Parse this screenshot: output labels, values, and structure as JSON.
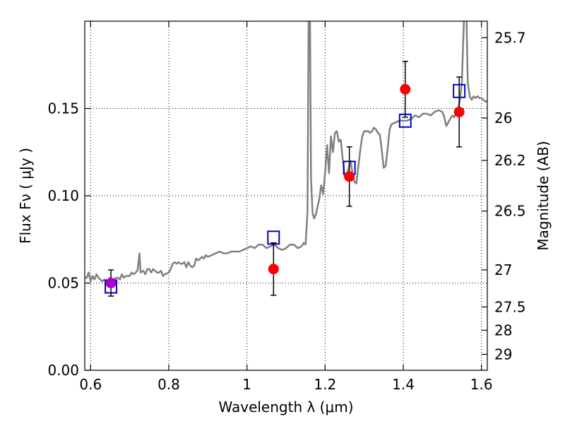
{
  "chart_data": {
    "type": "scatter",
    "title": "",
    "xlabel": "Wavelength  λ (μm)",
    "ylabel": "Flux  Fν  ( μJy )",
    "ylabel_right": "Magnitude (AB)",
    "xlim": [
      0.585,
      1.615
    ],
    "ylim": [
      0.0,
      0.2
    ],
    "grid": true,
    "x_ticks": [
      0.6,
      0.8,
      1.0,
      1.2,
      1.4,
      1.6
    ],
    "x_tick_labels": [
      "0.6",
      "0.8",
      "1",
      "1.2",
      "1.4",
      "1.6"
    ],
    "y_ticks": [
      0.0,
      0.05,
      0.1,
      0.15
    ],
    "y_tick_labels": [
      "0.00",
      "0.05",
      "0.10",
      "0.15"
    ],
    "right_ticks": [
      {
        "label": "25.7",
        "mag": 25.7
      },
      {
        "label": "26",
        "mag": 26.0
      },
      {
        "label": "26.2",
        "mag": 26.2
      },
      {
        "label": "26.5",
        "mag": 26.5
      },
      {
        "label": "27",
        "mag": 27.0
      },
      {
        "label": "27.5",
        "mag": 27.5
      },
      {
        "label": "28",
        "mag": 28.0
      },
      {
        "label": "29",
        "mag": 29.0
      }
    ],
    "series": [
      {
        "kind": "line",
        "color": "#808080",
        "points": [
          [
            0.585,
            0.053
          ],
          [
            0.59,
            0.053
          ],
          [
            0.595,
            0.056
          ],
          [
            0.6,
            0.051
          ],
          [
            0.605,
            0.054
          ],
          [
            0.61,
            0.052
          ],
          [
            0.615,
            0.055
          ],
          [
            0.62,
            0.053
          ],
          [
            0.625,
            0.052
          ],
          [
            0.63,
            0.051
          ],
          [
            0.635,
            0.052
          ],
          [
            0.64,
            0.051
          ],
          [
            0.645,
            0.052
          ],
          [
            0.65,
            0.053
          ],
          [
            0.655,
            0.051
          ],
          [
            0.66,
            0.052
          ],
          [
            0.665,
            0.053
          ],
          [
            0.67,
            0.053
          ],
          [
            0.675,
            0.052
          ],
          [
            0.68,
            0.055
          ],
          [
            0.685,
            0.053
          ],
          [
            0.69,
            0.054
          ],
          [
            0.7,
            0.054
          ],
          [
            0.705,
            0.056
          ],
          [
            0.71,
            0.055
          ],
          [
            0.715,
            0.056
          ],
          [
            0.72,
            0.057
          ],
          [
            0.725,
            0.067
          ],
          [
            0.728,
            0.056
          ],
          [
            0.735,
            0.057
          ],
          [
            0.74,
            0.055
          ],
          [
            0.745,
            0.058
          ],
          [
            0.75,
            0.058
          ],
          [
            0.755,
            0.056
          ],
          [
            0.76,
            0.058
          ],
          [
            0.765,
            0.057
          ],
          [
            0.77,
            0.056
          ],
          [
            0.775,
            0.056
          ],
          [
            0.78,
            0.057
          ],
          [
            0.785,
            0.054
          ],
          [
            0.79,
            0.055
          ],
          [
            0.8,
            0.056
          ],
          [
            0.805,
            0.058
          ],
          [
            0.81,
            0.061
          ],
          [
            0.815,
            0.062
          ],
          [
            0.82,
            0.061
          ],
          [
            0.825,
            0.062
          ],
          [
            0.83,
            0.061
          ],
          [
            0.835,
            0.061
          ],
          [
            0.84,
            0.062
          ],
          [
            0.845,
            0.059
          ],
          [
            0.85,
            0.062
          ],
          [
            0.855,
            0.06
          ],
          [
            0.86,
            0.059
          ],
          [
            0.865,
            0.06
          ],
          [
            0.87,
            0.064
          ],
          [
            0.875,
            0.063
          ],
          [
            0.88,
            0.064
          ],
          [
            0.885,
            0.065
          ],
          [
            0.89,
            0.064
          ],
          [
            0.895,
            0.066
          ],
          [
            0.9,
            0.065
          ],
          [
            0.91,
            0.066
          ],
          [
            0.92,
            0.067
          ],
          [
            0.93,
            0.068
          ],
          [
            0.94,
            0.067
          ],
          [
            0.95,
            0.067
          ],
          [
            0.96,
            0.068
          ],
          [
            0.97,
            0.068
          ],
          [
            0.98,
            0.068
          ],
          [
            0.99,
            0.069
          ],
          [
            1.0,
            0.07
          ],
          [
            1.01,
            0.071
          ],
          [
            1.02,
            0.07
          ],
          [
            1.03,
            0.072
          ],
          [
            1.04,
            0.072
          ],
          [
            1.05,
            0.07
          ],
          [
            1.06,
            0.071
          ],
          [
            1.07,
            0.072
          ],
          [
            1.08,
            0.07
          ],
          [
            1.09,
            0.069
          ],
          [
            1.1,
            0.07
          ],
          [
            1.11,
            0.072
          ],
          [
            1.12,
            0.072
          ],
          [
            1.13,
            0.07
          ],
          [
            1.14,
            0.071
          ],
          [
            1.145,
            0.073
          ],
          [
            1.15,
            0.072
          ],
          [
            1.155,
            0.091
          ],
          [
            1.158,
            0.21
          ],
          [
            1.161,
            0.21
          ],
          [
            1.164,
            0.11
          ],
          [
            1.168,
            0.09
          ],
          [
            1.172,
            0.087
          ],
          [
            1.176,
            0.089
          ],
          [
            1.18,
            0.093
          ],
          [
            1.185,
            0.098
          ],
          [
            1.19,
            0.106
          ],
          [
            1.195,
            0.101
          ],
          [
            1.2,
            0.113
          ],
          [
            1.205,
            0.129
          ],
          [
            1.21,
            0.113
          ],
          [
            1.215,
            0.134
          ],
          [
            1.22,
            0.125
          ],
          [
            1.225,
            0.136
          ],
          [
            1.23,
            0.137
          ],
          [
            1.235,
            0.131
          ],
          [
            1.24,
            0.132
          ],
          [
            1.245,
            0.121
          ],
          [
            1.25,
            0.112
          ],
          [
            1.255,
            0.11
          ],
          [
            1.26,
            0.116
          ],
          [
            1.265,
            0.12
          ],
          [
            1.27,
            0.113
          ],
          [
            1.275,
            0.108
          ],
          [
            1.28,
            0.107
          ],
          [
            1.285,
            0.117
          ],
          [
            1.29,
            0.126
          ],
          [
            1.295,
            0.134
          ],
          [
            1.3,
            0.137
          ],
          [
            1.31,
            0.137
          ],
          [
            1.315,
            0.136
          ],
          [
            1.32,
            0.137
          ],
          [
            1.325,
            0.139
          ],
          [
            1.33,
            0.138
          ],
          [
            1.335,
            0.136
          ],
          [
            1.34,
            0.135
          ],
          [
            1.345,
            0.126
          ],
          [
            1.35,
            0.116
          ],
          [
            1.355,
            0.117
          ],
          [
            1.36,
            0.127
          ],
          [
            1.365,
            0.138
          ],
          [
            1.37,
            0.141
          ],
          [
            1.38,
            0.142
          ],
          [
            1.39,
            0.143
          ],
          [
            1.4,
            0.143
          ],
          [
            1.41,
            0.143
          ],
          [
            1.42,
            0.144
          ],
          [
            1.43,
            0.146
          ],
          [
            1.44,
            0.145
          ],
          [
            1.45,
            0.147
          ],
          [
            1.46,
            0.147
          ],
          [
            1.47,
            0.146
          ],
          [
            1.48,
            0.148
          ],
          [
            1.49,
            0.149
          ],
          [
            1.5,
            0.148
          ],
          [
            1.505,
            0.145
          ],
          [
            1.51,
            0.14
          ],
          [
            1.515,
            0.142
          ],
          [
            1.52,
            0.144
          ],
          [
            1.525,
            0.146
          ],
          [
            1.53,
            0.145
          ],
          [
            1.535,
            0.147
          ],
          [
            1.54,
            0.149
          ],
          [
            1.545,
            0.155
          ],
          [
            1.55,
            0.165
          ],
          [
            1.555,
            0.2
          ],
          [
            1.558,
            0.21
          ],
          [
            1.561,
            0.21
          ],
          [
            1.565,
            0.165
          ],
          [
            1.57,
            0.157
          ],
          [
            1.575,
            0.155
          ],
          [
            1.58,
            0.157
          ],
          [
            1.585,
            0.156
          ],
          [
            1.59,
            0.157
          ],
          [
            1.595,
            0.156
          ],
          [
            1.6,
            0.156
          ],
          [
            1.605,
            0.155
          ],
          [
            1.61,
            0.154
          ],
          [
            1.615,
            0.154
          ]
        ]
      },
      {
        "kind": "squares",
        "color": "#0000cc",
        "points": [
          [
            0.652,
            0.048
          ],
          [
            1.068,
            0.076
          ],
          [
            1.262,
            0.116
          ],
          [
            1.405,
            0.143
          ],
          [
            1.543,
            0.16
          ]
        ]
      },
      {
        "kind": "points",
        "color": "#ff0000",
        "points": [
          {
            "x": 1.068,
            "y": 0.058,
            "err": 0.015
          },
          {
            "x": 1.262,
            "y": 0.111,
            "err": 0.017
          },
          {
            "x": 1.405,
            "y": 0.161,
            "err": 0.016
          },
          {
            "x": 1.543,
            "y": 0.148,
            "err": 0.02
          }
        ]
      },
      {
        "kind": "points",
        "color": "#aa00cc",
        "points": [
          {
            "x": 0.652,
            "y": 0.05,
            "err": 0.0075
          }
        ]
      }
    ]
  }
}
